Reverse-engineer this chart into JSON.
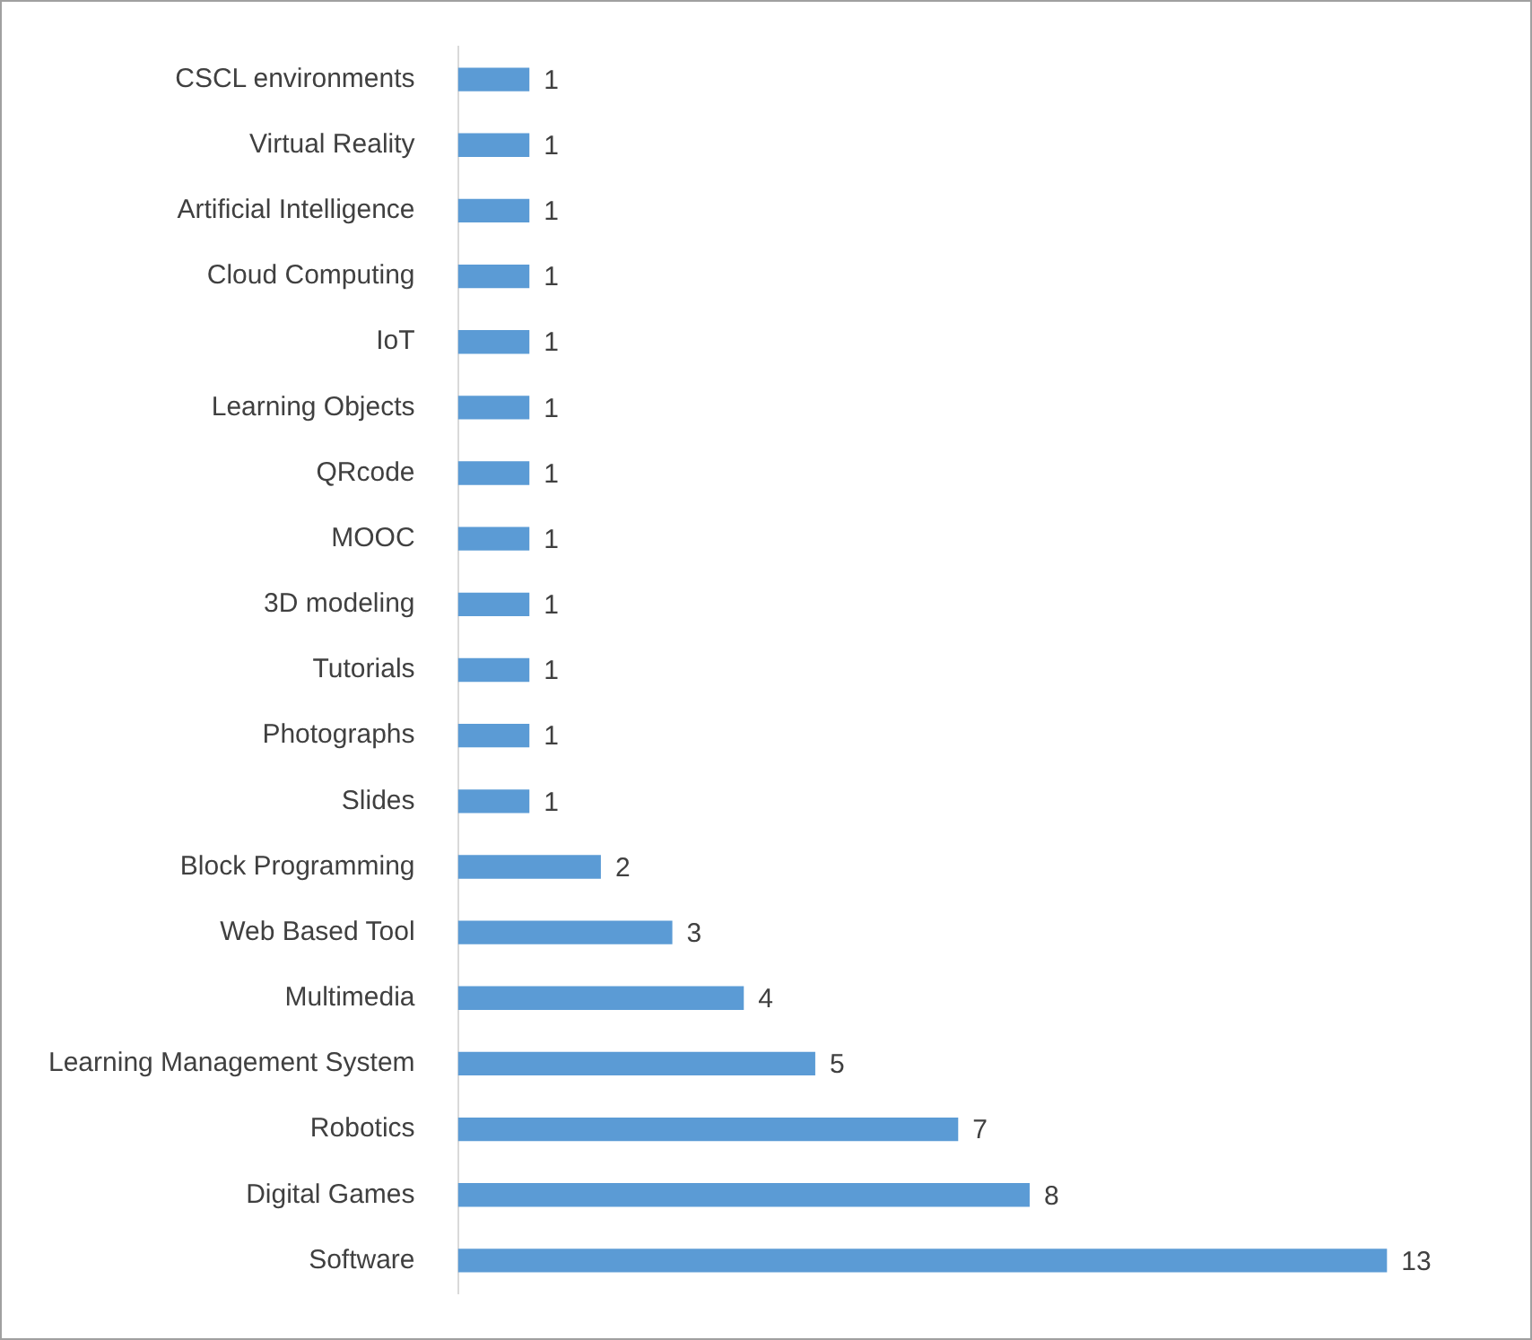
{
  "chart_data": {
    "type": "bar",
    "orientation": "horizontal",
    "data_labels": true,
    "color": "#5b9bd5",
    "legend": false,
    "categories": [
      "CSCL environments",
      "Virtual Reality",
      "Artificial Intelligence",
      "Cloud Computing",
      "IoT",
      "Learning Objects",
      "QRcode",
      "MOOC",
      "3D modeling",
      "Tutorials",
      "Photographs",
      "Slides",
      "Block Programming",
      "Web Based Tool",
      "Multimedia",
      "Learning Management System",
      "Robotics",
      "Digital Games",
      "Software"
    ],
    "values": [
      1,
      1,
      1,
      1,
      1,
      1,
      1,
      1,
      1,
      1,
      1,
      1,
      2,
      3,
      4,
      5,
      7,
      8,
      13
    ]
  }
}
